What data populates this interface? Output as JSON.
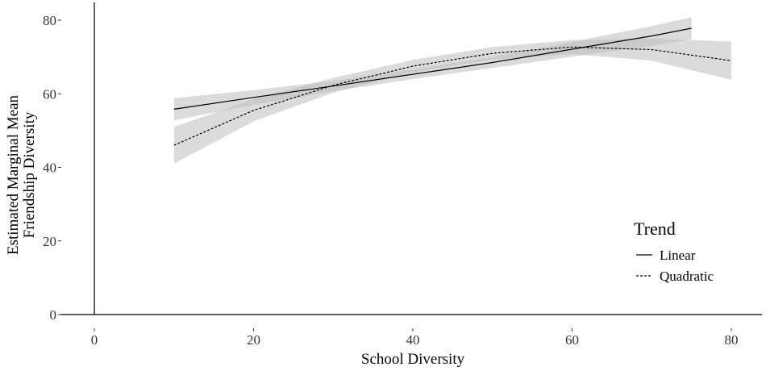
{
  "chart_data": {
    "type": "line",
    "xlabel": "School Diversity",
    "ylabel_lines": [
      "Estimated Marginal Mean",
      "Friendship Diversity"
    ],
    "xlim": [
      0,
      80
    ],
    "ylim": [
      0,
      80
    ],
    "x_ticks": [
      0,
      20,
      40,
      60,
      80
    ],
    "y_ticks": [
      0,
      20,
      40,
      60,
      80
    ],
    "grid": false,
    "legend": {
      "title": "Trend",
      "placement": "right",
      "entries": [
        {
          "label": "Linear",
          "style": "solid"
        },
        {
          "label": "Quadratic",
          "style": "dotted"
        }
      ]
    },
    "ribbon_color": "#bdbdbd",
    "series": [
      {
        "name": "Linear",
        "style": "solid",
        "points": [
          {
            "x": 10,
            "y": 55.8,
            "lo": 52.8,
            "hi": 58.8
          },
          {
            "x": 20,
            "y": 59.0,
            "lo": 57.0,
            "hi": 61.0
          },
          {
            "x": 30,
            "y": 62.1,
            "lo": 60.7,
            "hi": 63.5
          },
          {
            "x": 40,
            "y": 65.3,
            "lo": 64.0,
            "hi": 66.6
          },
          {
            "x": 50,
            "y": 68.5,
            "lo": 67.0,
            "hi": 70.0
          },
          {
            "x": 60,
            "y": 72.1,
            "lo": 70.1,
            "hi": 74.1
          },
          {
            "x": 70,
            "y": 75.7,
            "lo": 73.0,
            "hi": 78.4
          },
          {
            "x": 75,
            "y": 77.8,
            "lo": 74.8,
            "hi": 80.8
          }
        ]
      },
      {
        "name": "Quadratic",
        "style": "dotted",
        "points": [
          {
            "x": 10,
            "y": 46.0,
            "lo": 41.0,
            "hi": 51.0
          },
          {
            "x": 20,
            "y": 55.5,
            "lo": 52.5,
            "hi": 58.5
          },
          {
            "x": 30,
            "y": 62.3,
            "lo": 60.3,
            "hi": 64.3
          },
          {
            "x": 40,
            "y": 67.5,
            "lo": 65.8,
            "hi": 69.2
          },
          {
            "x": 50,
            "y": 71.0,
            "lo": 69.3,
            "hi": 72.7
          },
          {
            "x": 60,
            "y": 72.7,
            "lo": 70.8,
            "hi": 74.6
          },
          {
            "x": 70,
            "y": 72.0,
            "lo": 69.0,
            "hi": 75.0
          },
          {
            "x": 80,
            "y": 69.0,
            "lo": 63.8,
            "hi": 74.2
          }
        ]
      }
    ]
  }
}
